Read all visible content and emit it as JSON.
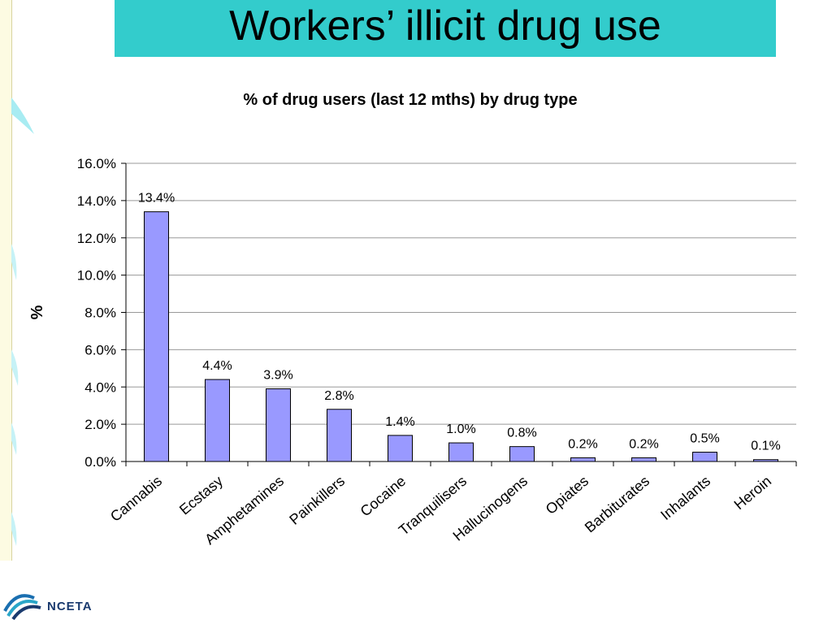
{
  "slide": {
    "title": "Workers’ illicit drug use",
    "title_bg": "#33cccc",
    "logo_text": "NCETA"
  },
  "chart_data": {
    "type": "bar",
    "title": "% of drug users (last 12 mths) by drug type",
    "xlabel": "",
    "ylabel": "%",
    "categories": [
      "Cannabis",
      "Ecstasy",
      "Amphetamines",
      "Painkillers",
      "Cocaine",
      "Tranquilisers",
      "Hallucinogens",
      "Opiates",
      "Barbiturates",
      "Inhalants",
      "Heroin"
    ],
    "values": [
      13.4,
      4.4,
      3.9,
      2.8,
      1.4,
      1.0,
      0.8,
      0.2,
      0.2,
      0.5,
      0.1
    ],
    "data_labels": [
      "13.4%",
      "4.4%",
      "3.9%",
      "2.8%",
      "1.4%",
      "1.0%",
      "0.8%",
      "0.2%",
      "0.2%",
      "0.5%",
      "0.1%"
    ],
    "ylim": [
      0,
      16
    ],
    "yticks": [
      0,
      2,
      4,
      6,
      8,
      10,
      12,
      14,
      16
    ],
    "ytick_labels": [
      "0.0%",
      "2.0%",
      "4.0%",
      "6.0%",
      "8.0%",
      "10.0%",
      "12.0%",
      "14.0%",
      "16.0%"
    ],
    "grid": true,
    "bar_color": "#9999ff"
  }
}
